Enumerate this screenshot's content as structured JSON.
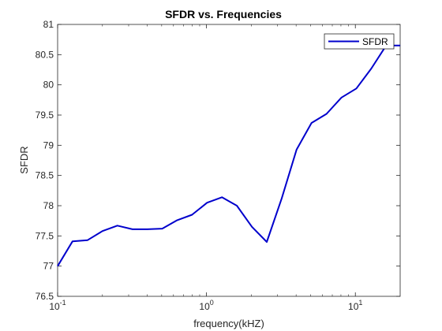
{
  "chart_data": {
    "type": "line",
    "title": "SFDR vs. Frequencies",
    "xlabel": "frequency(kHZ)",
    "ylabel": "SFDR",
    "xscale": "log",
    "xlim": [
      0.1,
      20
    ],
    "ylim": [
      76.5,
      81
    ],
    "yticks": [
      76.5,
      77,
      77.5,
      78,
      78.5,
      79,
      79.5,
      80,
      80.5,
      81
    ],
    "ytick_labels": [
      "76.5",
      "77",
      "77.5",
      "78",
      "78.5",
      "79",
      "79.5",
      "80",
      "80.5",
      "81"
    ],
    "xticks": [
      {
        "value": 0.1,
        "base": "10",
        "exp": "-1"
      },
      {
        "value": 1,
        "base": "10",
        "exp": "0"
      },
      {
        "value": 10,
        "base": "10",
        "exp": "1"
      }
    ],
    "grid": false,
    "legend": "top-right",
    "series": [
      {
        "name": "SFDR",
        "color": "#0000cc",
        "x": [
          0.1,
          0.126,
          0.159,
          0.2,
          0.252,
          0.318,
          0.4,
          0.505,
          0.636,
          0.8,
          1.01,
          1.27,
          1.6,
          2.02,
          2.54,
          3.2,
          4.03,
          5.08,
          6.4,
          8.06,
          10.16,
          12.8,
          16.1,
          20
        ],
        "y": [
          77.0,
          77.41,
          77.43,
          77.58,
          77.67,
          77.61,
          77.61,
          77.62,
          77.76,
          77.85,
          78.05,
          78.14,
          78.0,
          77.65,
          77.4,
          78.12,
          78.93,
          79.37,
          79.52,
          79.79,
          79.94,
          80.27,
          80.65,
          80.65
        ]
      }
    ]
  }
}
